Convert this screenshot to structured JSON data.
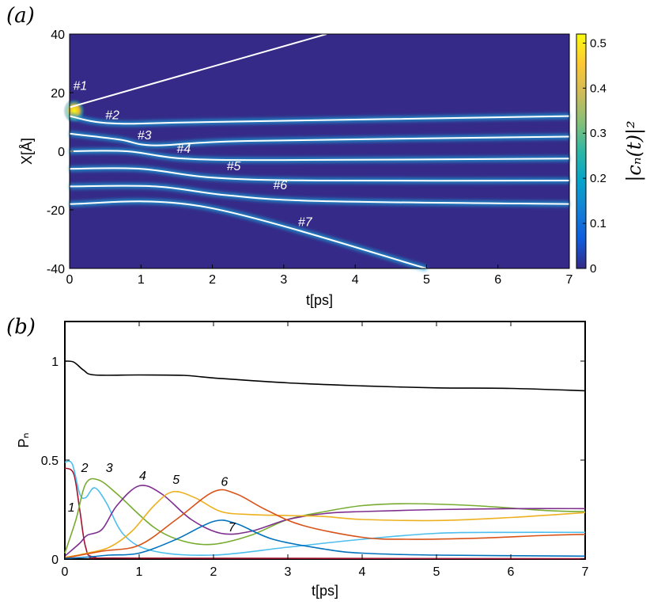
{
  "chart_data": [
    {
      "panel": "(a)",
      "type": "heatmap",
      "xlabel": "t[ps]",
      "ylabel": "X[Å]",
      "xlim": [
        0,
        7
      ],
      "ylim": [
        -40,
        40
      ],
      "xticks": [
        "0",
        "1",
        "2",
        "3",
        "4",
        "5",
        "6",
        "7"
      ],
      "yticks": [
        "40",
        "20",
        "0",
        "-20",
        "-40"
      ],
      "colorbar": {
        "label": "|c_n(t)|^2",
        "label_display": "|cₙ(t)|²",
        "range": [
          0,
          0.52
        ],
        "ticks": [
          "0.5",
          "0.4",
          "0.3",
          "0.2",
          "0.1",
          "0"
        ],
        "colormap": "parula"
      },
      "trajectories": [
        {
          "name": "#1",
          "points": [
            [
              0,
              15
            ],
            [
              3.6,
              40
            ]
          ]
        },
        {
          "name": "#2",
          "points": [
            [
              0,
              12
            ],
            [
              0.6,
              9.5
            ],
            [
              2,
              10
            ],
            [
              7,
              12
            ]
          ]
        },
        {
          "name": "#3",
          "points": [
            [
              0,
              6
            ],
            [
              0.7,
              4
            ],
            [
              1.2,
              2
            ],
            [
              2.5,
              3.5
            ],
            [
              7,
              5
            ]
          ]
        },
        {
          "name": "#4",
          "points": [
            [
              0,
              0
            ],
            [
              0.8,
              0
            ],
            [
              1.6,
              -2.5
            ],
            [
              3,
              -3
            ],
            [
              7,
              -2.5
            ]
          ]
        },
        {
          "name": "#5",
          "points": [
            [
              0,
              -6
            ],
            [
              1,
              -6
            ],
            [
              2,
              -9
            ],
            [
              3.5,
              -10
            ],
            [
              7,
              -10
            ]
          ]
        },
        {
          "name": "#6",
          "points": [
            [
              0,
              -12
            ],
            [
              1.2,
              -12
            ],
            [
              2.2,
              -15
            ],
            [
              3.5,
              -17
            ],
            [
              7,
              -18
            ]
          ]
        },
        {
          "name": "#7",
          "points": [
            [
              0,
              -18
            ],
            [
              1.9,
              -19
            ],
            [
              5,
              -40
            ]
          ]
        }
      ],
      "annotations": [
        {
          "text": "#1",
          "x": 0.05,
          "y": 21
        },
        {
          "text": "#2",
          "x": 0.5,
          "y": 11
        },
        {
          "text": "#3",
          "x": 0.95,
          "y": 4
        },
        {
          "text": "#4",
          "x": 1.5,
          "y": -0.5
        },
        {
          "text": "#5",
          "x": 2.2,
          "y": -6.5
        },
        {
          "text": "#6",
          "x": 2.85,
          "y": -13
        },
        {
          "text": "#7",
          "x": 3.2,
          "y": -25.5
        }
      ]
    },
    {
      "panel": "(b)",
      "type": "line",
      "xlabel": "t[ps]",
      "ylabel": "P_n",
      "ylabel_display": "Pₙ",
      "xlim": [
        0,
        7
      ],
      "ylim": [
        0,
        1.2
      ],
      "xticks": [
        "0",
        "1",
        "2",
        "3",
        "4",
        "5",
        "6",
        "7"
      ],
      "yticks": [
        "1",
        "0.5",
        "0"
      ],
      "series": [
        {
          "color": "#000000",
          "points": [
            [
              0,
              1.0
            ],
            [
              0.12,
              0.995
            ],
            [
              0.25,
              0.955
            ],
            [
              0.4,
              0.93
            ],
            [
              1,
              0.93
            ],
            [
              1.6,
              0.928
            ],
            [
              2,
              0.915
            ],
            [
              3,
              0.89
            ],
            [
              4,
              0.875
            ],
            [
              5,
              0.865
            ],
            [
              6,
              0.862
            ],
            [
              7,
              0.85
            ]
          ]
        },
        {
          "color": "#A2142F",
          "points": [
            [
              0,
              0.46
            ],
            [
              0.12,
              0.43
            ],
            [
              0.2,
              0.25
            ],
            [
              0.28,
              0.06
            ],
            [
              0.4,
              0.01
            ],
            [
              1,
              0.005
            ],
            [
              7,
              0.002
            ]
          ]
        },
        {
          "color": "#4DBEEE",
          "points": [
            [
              0,
              0.49
            ],
            [
              0.1,
              0.48
            ],
            [
              0.2,
              0.33
            ],
            [
              0.28,
              0.31
            ],
            [
              0.4,
              0.36
            ],
            [
              0.55,
              0.29
            ],
            [
              0.8,
              0.12
            ],
            [
              1.2,
              0.04
            ],
            [
              2,
              0.02
            ],
            [
              3,
              0.06
            ],
            [
              4,
              0.1
            ],
            [
              5,
              0.13
            ],
            [
              6,
              0.135
            ],
            [
              7,
              0.135
            ]
          ]
        },
        {
          "color": "#77AC30",
          "points": [
            [
              0,
              0.03
            ],
            [
              0.15,
              0.2
            ],
            [
              0.28,
              0.38
            ],
            [
              0.45,
              0.4
            ],
            [
              0.7,
              0.33
            ],
            [
              1.2,
              0.16
            ],
            [
              1.6,
              0.09
            ],
            [
              2,
              0.075
            ],
            [
              2.5,
              0.12
            ],
            [
              3,
              0.2
            ],
            [
              3.5,
              0.24
            ],
            [
              4,
              0.27
            ],
            [
              4.6,
              0.28
            ],
            [
              5.5,
              0.27
            ],
            [
              6.5,
              0.245
            ],
            [
              7,
              0.24
            ]
          ]
        },
        {
          "color": "#7E2F8E",
          "points": [
            [
              0,
              0.015
            ],
            [
              0.2,
              0.08
            ],
            [
              0.3,
              0.12
            ],
            [
              0.5,
              0.15
            ],
            [
              0.7,
              0.27
            ],
            [
              1,
              0.37
            ],
            [
              1.3,
              0.33
            ],
            [
              1.7,
              0.2
            ],
            [
              2.1,
              0.13
            ],
            [
              2.5,
              0.14
            ],
            [
              3,
              0.2
            ],
            [
              3.5,
              0.23
            ],
            [
              4,
              0.24
            ],
            [
              5,
              0.25
            ],
            [
              6,
              0.255
            ],
            [
              7,
              0.255
            ]
          ]
        },
        {
          "color": "#EDB120",
          "points": [
            [
              0,
              0.008
            ],
            [
              0.3,
              0.03
            ],
            [
              0.6,
              0.06
            ],
            [
              0.9,
              0.14
            ],
            [
              1.2,
              0.27
            ],
            [
              1.45,
              0.34
            ],
            [
              1.75,
              0.31
            ],
            [
              2.1,
              0.24
            ],
            [
              2.5,
              0.225
            ],
            [
              3,
              0.22
            ],
            [
              3.5,
              0.215
            ],
            [
              4,
              0.2
            ],
            [
              5,
              0.195
            ],
            [
              6,
              0.21
            ],
            [
              7,
              0.235
            ]
          ]
        },
        {
          "color": "#D95319",
          "points": [
            [
              0,
              0.005
            ],
            [
              0.5,
              0.04
            ],
            [
              1,
              0.07
            ],
            [
              1.5,
              0.2
            ],
            [
              2,
              0.34
            ],
            [
              2.3,
              0.33
            ],
            [
              2.7,
              0.25
            ],
            [
              3.2,
              0.17
            ],
            [
              4,
              0.11
            ],
            [
              4.6,
              0.1
            ],
            [
              5.5,
              0.105
            ],
            [
              6.5,
              0.12
            ],
            [
              7,
              0.125
            ]
          ]
        },
        {
          "color": "#0072BD",
          "points": [
            [
              0,
              0.003
            ],
            [
              0.3,
              0.01
            ],
            [
              0.6,
              0.02
            ],
            [
              1,
              0.03
            ],
            [
              1.5,
              0.1
            ],
            [
              2,
              0.19
            ],
            [
              2.3,
              0.18
            ],
            [
              2.8,
              0.1
            ],
            [
              3.5,
              0.05
            ],
            [
              4,
              0.03
            ],
            [
              5,
              0.02
            ],
            [
              7,
              0.015
            ]
          ]
        }
      ],
      "annotations": [
        {
          "text": "1",
          "x": 0.04,
          "y": 0.24
        },
        {
          "text": "2",
          "x": 0.22,
          "y": 0.44
        },
        {
          "text": "3",
          "x": 0.55,
          "y": 0.44
        },
        {
          "text": "4",
          "x": 1.0,
          "y": 0.4
        },
        {
          "text": "5",
          "x": 1.45,
          "y": 0.38
        },
        {
          "text": "6",
          "x": 2.1,
          "y": 0.37
        },
        {
          "text": "7",
          "x": 2.2,
          "y": 0.14
        }
      ]
    }
  ]
}
